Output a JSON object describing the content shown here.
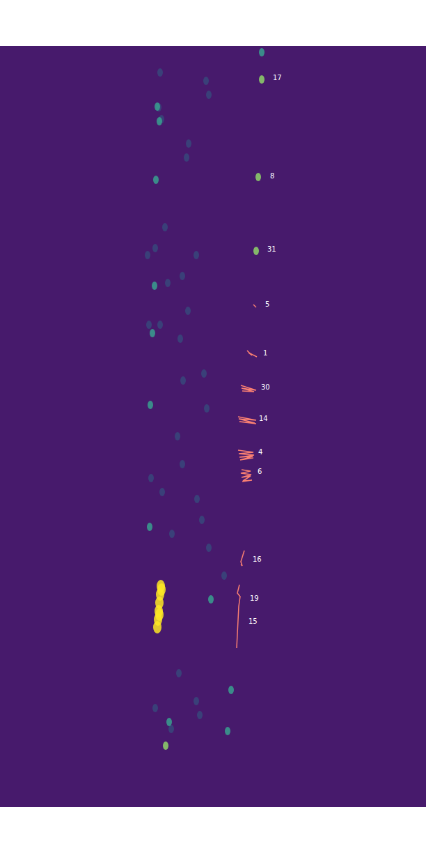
{
  "chart_data": {
    "type": "scatter",
    "tick_labels": false,
    "xlim": [
      0,
      612
    ],
    "ylim": [
      0,
      1092
    ],
    "tracks": [
      {
        "color": "#fa8072",
        "x": [
          364,
          368
        ],
        "y": [
          371,
          375
        ]
      },
      {
        "color": "#fa8072",
        "x": [
          355,
          362,
          357,
          369
        ],
        "y": [
          437,
          444,
          440,
          446
        ]
      },
      {
        "color": "#fa8072",
        "x": [
          346,
          368,
          347,
          365,
          348
        ],
        "y": [
          487,
          494,
          491,
          496,
          495
        ]
      },
      {
        "color": "#fa8072",
        "x": [
          342,
          368,
          343,
          366,
          344,
          368
        ],
        "y": [
          532,
          537,
          535,
          541,
          539,
          542
        ]
      },
      {
        "color": "#fa8072",
        "x": [
          342,
          364,
          343,
          365,
          344,
          363,
          345,
          364
        ],
        "y": [
          580,
          583,
          585,
          587,
          590,
          589,
          594,
          591
        ]
      },
      {
        "color": "#fa8072",
        "x": [
          347,
          360,
          346,
          361,
          347,
          360,
          349,
          362,
          348
        ],
        "y": [
          608,
          610,
          613,
          615,
          619,
          617,
          624,
          623,
          625
        ]
      },
      {
        "color": "#fa8072",
        "x": [
          351,
          346,
          348,
          346
        ],
        "y": [
          724,
          740,
          746,
          744
        ]
      },
      {
        "color": "#fa8072",
        "x": [
          344,
          341,
          345,
          343,
          342,
          341,
          340
        ],
        "y": [
          773,
          785,
          790,
          804,
          824,
          844,
          864
        ]
      }
    ],
    "spots": [
      {
        "color": "#2a6f8a",
        "x": [
          230,
          232,
          228,
          271,
          268,
          296,
          300,
          237,
          241,
          223,
          262,
          270,
          282,
          214,
          259,
          263,
          293,
          297,
          255,
          262,
          217,
          233,
          283,
          290,
          247,
          300,
          322,
          257,
          223,
          282,
          246,
          287,
          212,
          230
        ],
        "y": [
          38,
          105,
          88,
          140,
          160,
          50,
          70,
          260,
          340,
          290,
          330,
          380,
          300,
          400,
          420,
          480,
          470,
          520,
          560,
          600,
          620,
          640,
          650,
          680,
          700,
          720,
          760,
          900,
          950,
          940,
          980,
          960,
          300,
          400
        ]
      },
      {
        "color": "#3aa08f",
        "x": [
          376,
          226,
          229,
          224,
          222,
          219,
          216,
          215,
          327,
          332,
          303,
          243
        ],
        "y": [
          9,
          87,
          108,
          192,
          344,
          412,
          515,
          690,
          983,
          924,
          794,
          970
        ]
      },
      {
        "color": "#8fd46a",
        "x": [
          376,
          371,
          368,
          238
        ],
        "y": [
          48,
          188,
          294,
          1004
        ]
      },
      {
        "color": "#fde725",
        "x": [
          231,
          230,
          229,
          228,
          227,
          226,
          232,
          229
        ],
        "y": [
          775,
          787,
          799,
          811,
          823,
          834,
          780,
          816
        ]
      }
    ],
    "annotations": [
      {
        "text": "17",
        "x": 392,
        "y": 46
      },
      {
        "text": "8",
        "x": 388,
        "y": 187
      },
      {
        "text": "31",
        "x": 384,
        "y": 292
      },
      {
        "text": "5",
        "x": 381,
        "y": 371
      },
      {
        "text": "1",
        "x": 378,
        "y": 441
      },
      {
        "text": "30",
        "x": 375,
        "y": 490
      },
      {
        "text": "14",
        "x": 372,
        "y": 535
      },
      {
        "text": "4",
        "x": 371,
        "y": 583
      },
      {
        "text": "6",
        "x": 370,
        "y": 611
      },
      {
        "text": "16",
        "x": 363,
        "y": 737
      },
      {
        "text": "19",
        "x": 359,
        "y": 793
      },
      {
        "text": "15",
        "x": 357,
        "y": 826
      }
    ]
  }
}
